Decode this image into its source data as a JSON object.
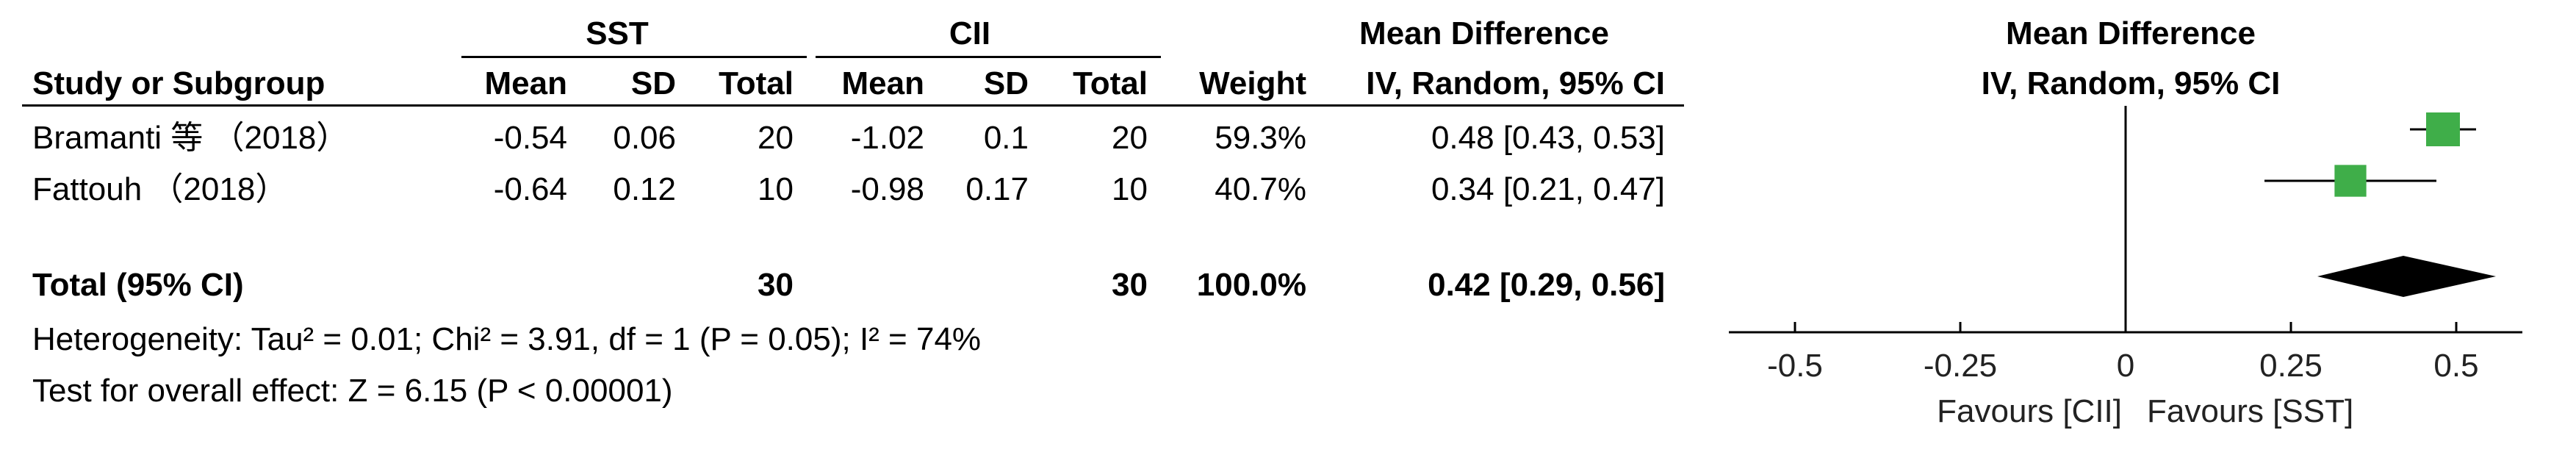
{
  "header": {
    "group1": "SST",
    "group2": "CII",
    "effect_col": "Mean Difference",
    "plot_col": "Mean Difference",
    "subcol_study": "Study or Subgroup",
    "subcol_mean1": "Mean",
    "subcol_sd1": "SD",
    "subcol_total1": "Total",
    "subcol_mean2": "Mean",
    "subcol_sd2": "SD",
    "subcol_total2": "Total",
    "subcol_weight": "Weight",
    "subcol_effect": "IV, Random, 95% CI",
    "subcol_plot": "IV, Random, 95% CI"
  },
  "studies": [
    {
      "name": "Bramanti 等 （2018）",
      "mean1": "-0.54",
      "sd1": "0.06",
      "total1": "20",
      "mean2": "-1.02",
      "sd2": "0.1",
      "total2": "20",
      "weight": "59.3%",
      "effect": "0.48 [0.43, 0.53]"
    },
    {
      "name": "Fattouh （2018）",
      "mean1": "-0.64",
      "sd1": "0.12",
      "total1": "10",
      "mean2": "-0.98",
      "sd2": "0.17",
      "total2": "10",
      "weight": "40.7%",
      "effect": "0.34 [0.21, 0.47]"
    }
  ],
  "total": {
    "label": "Total (95% CI)",
    "total1": "30",
    "total2": "30",
    "weight": "100.0%",
    "effect": "0.42 [0.29, 0.56]"
  },
  "heterogeneity": "Heterogeneity: Tau² = 0.01; Chi² = 3.91, df = 1 (P = 0.05); I² = 74%",
  "overall_effect": "Test for overall effect: Z = 6.15 (P < 0.00001)",
  "axis": {
    "favours_left": "Favours [CII]",
    "favours_right": "Favours [SST]"
  },
  "colors": {
    "square": "#3fae49",
    "diamond": "#000000"
  },
  "chart_data": {
    "type": "forest",
    "xlim": [
      -0.6,
      0.6
    ],
    "xticks": [
      -0.5,
      -0.25,
      0,
      0.25,
      0.5
    ],
    "xtick_labels": [
      "-0.5",
      "-0.25",
      "0",
      "0.25",
      "0.5"
    ],
    "studies": [
      {
        "name": "Bramanti 等 （2018）",
        "estimate": 0.48,
        "ci": [
          0.43,
          0.53
        ],
        "weight": 59.3
      },
      {
        "name": "Fattouh （2018）",
        "estimate": 0.34,
        "ci": [
          0.21,
          0.47
        ],
        "weight": 40.7
      }
    ],
    "pooled": {
      "estimate": 0.42,
      "ci": [
        0.29,
        0.56
      ]
    }
  }
}
